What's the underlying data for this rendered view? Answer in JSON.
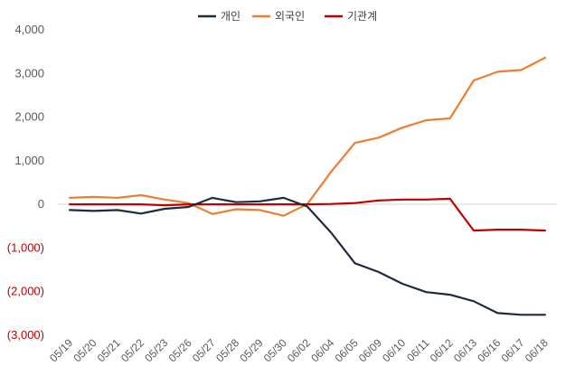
{
  "chart_data": {
    "type": "line",
    "categories": [
      "05/19",
      "05/20",
      "05/21",
      "05/22",
      "05/23",
      "05/26",
      "05/27",
      "05/28",
      "05/29",
      "05/30",
      "06/02",
      "06/04",
      "06/05",
      "06/09",
      "06/10",
      "06/11",
      "06/12",
      "06/13",
      "06/16",
      "06/17",
      "06/18"
    ],
    "series": [
      {
        "name": "개인",
        "color": "#1f2a3c",
        "values": [
          -130,
          -150,
          -130,
          -210,
          -100,
          -60,
          150,
          50,
          70,
          150,
          -50,
          -650,
          -1350,
          -1550,
          -1820,
          -2010,
          -2070,
          -2220,
          -2490,
          -2530,
          -2530
        ]
      },
      {
        "name": "외국인",
        "color": "#ed7d31",
        "values": [
          150,
          170,
          150,
          210,
          110,
          30,
          -220,
          -110,
          -130,
          -260,
          10,
          750,
          1410,
          1530,
          1760,
          1930,
          1970,
          2840,
          3040,
          3080,
          3360
        ]
      },
      {
        "name": "기관계",
        "color": "#c00000",
        "values": [
          0,
          0,
          0,
          0,
          -20,
          0,
          0,
          0,
          0,
          0,
          0,
          10,
          30,
          90,
          110,
          110,
          130,
          -600,
          -580,
          -580,
          -600
        ]
      }
    ],
    "y_ticks": [
      {
        "value": 4000,
        "label": "4,000"
      },
      {
        "value": 3000,
        "label": "3,000"
      },
      {
        "value": 2000,
        "label": "2,000"
      },
      {
        "value": 1000,
        "label": "1,000"
      },
      {
        "value": 0,
        "label": "0"
      },
      {
        "value": -1000,
        "label": "(1,000)"
      },
      {
        "value": -2000,
        "label": "(2,000)"
      },
      {
        "value": -3000,
        "label": "(3,000)"
      }
    ],
    "ylim": [
      -3000,
      4000
    ],
    "negative_tick_color": "#c00000",
    "grid": false,
    "zero_line": true,
    "legend_position": "top-center",
    "title": "",
    "xlabel": "",
    "ylabel": ""
  }
}
